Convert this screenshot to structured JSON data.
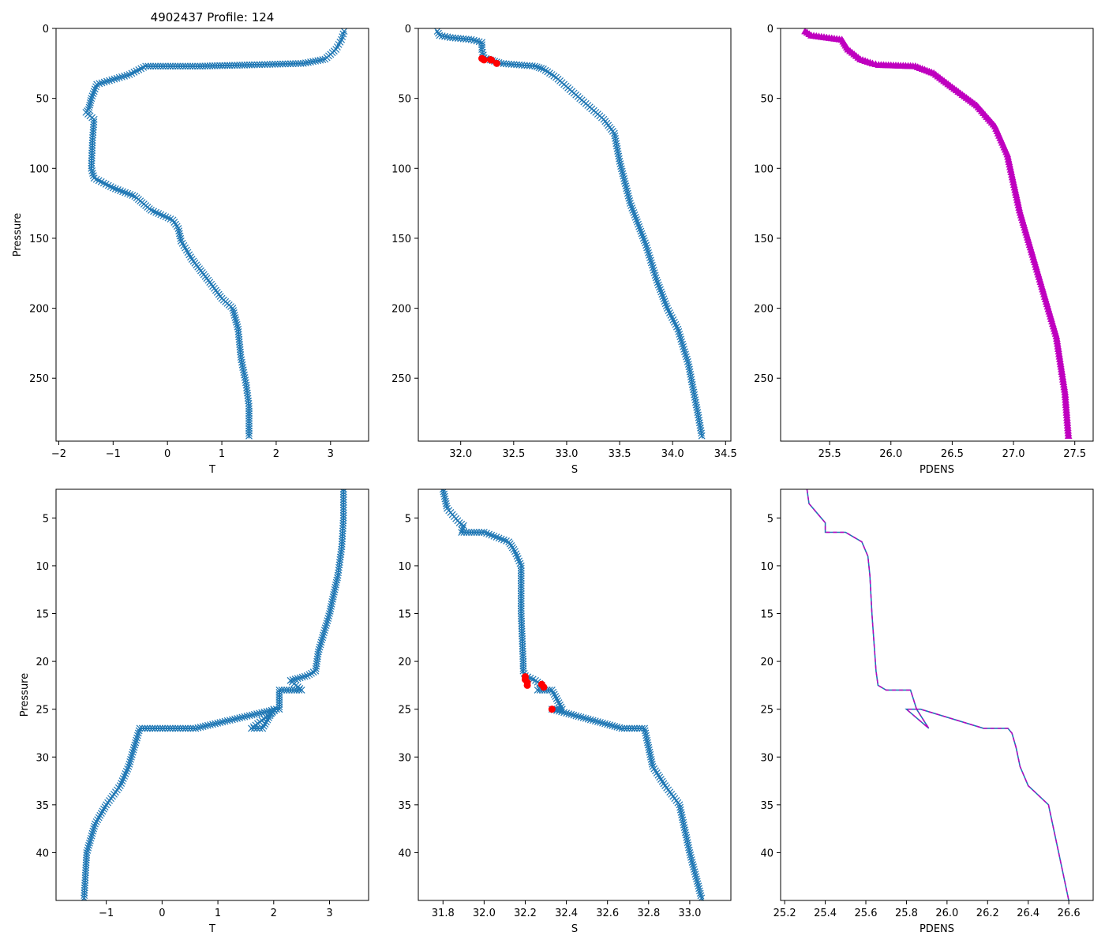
{
  "figure_title": "4902437 Profile: 124",
  "colors": {
    "series": "#1f77b4",
    "highlight": "#ff0000",
    "density": "#bf00bf",
    "axis": "#000000",
    "background": "#ffffff"
  },
  "chart_data": [
    {
      "type": "line",
      "panel": "top-left",
      "xlabel": "T",
      "ylabel": "Pressure",
      "xlim": [
        -2.05,
        3.7
      ],
      "ylim": [
        295,
        0
      ],
      "xticks": [
        -2,
        -1,
        0,
        1,
        2,
        3
      ],
      "xtick_labels": [
        "−2",
        "−1",
        "0",
        "1",
        "2",
        "3"
      ],
      "yticks": [
        0,
        50,
        100,
        150,
        200,
        250
      ],
      "ytick_labels": [
        "0",
        "50",
        "100",
        "150",
        "200",
        "250"
      ],
      "marker": "x",
      "series": [
        {
          "name": "T",
          "color": "#1f77b4",
          "x": [
            3.25,
            3.2,
            3.1,
            2.9,
            2.5,
            1.6,
            0.6,
            -0.4,
            -0.7,
            -1.3,
            -1.4,
            -1.45,
            -1.5,
            -1.35,
            -1.38,
            -1.4,
            -1.35,
            -1.0,
            -0.6,
            -0.3,
            0.1,
            0.2,
            0.25,
            0.45,
            0.75,
            1.0,
            1.2,
            1.3,
            1.35,
            1.45,
            1.5,
            1.5
          ],
          "y": [
            2,
            8,
            15,
            22,
            25,
            26,
            27,
            27,
            33,
            40,
            50,
            58,
            60,
            65,
            80,
            100,
            107,
            114,
            120,
            130,
            137,
            143,
            152,
            165,
            180,
            193,
            200,
            215,
            235,
            255,
            270,
            293
          ]
        }
      ]
    },
    {
      "type": "line",
      "panel": "top-middle",
      "xlabel": "S",
      "ylabel": "",
      "xlim": [
        31.6,
        34.55
      ],
      "ylim": [
        295,
        0
      ],
      "xticks": [
        32.0,
        32.5,
        33.0,
        33.5,
        34.0,
        34.5
      ],
      "xtick_labels": [
        "32.0",
        "32.5",
        "33.0",
        "33.5",
        "34.0",
        "34.5"
      ],
      "yticks": [
        0,
        50,
        100,
        150,
        200,
        250
      ],
      "ytick_labels": [
        "0",
        "50",
        "100",
        "150",
        "200",
        "250"
      ],
      "marker": "x",
      "series": [
        {
          "name": "S",
          "color": "#1f77b4",
          "x": [
            31.78,
            31.8,
            31.9,
            32.1,
            32.2,
            32.2,
            32.22,
            32.3,
            32.38,
            32.7,
            32.78,
            32.9,
            33.05,
            33.2,
            33.35,
            33.45,
            33.5,
            33.6,
            33.75,
            33.85,
            33.95,
            34.05,
            34.15,
            34.2,
            34.25,
            34.28
          ],
          "y": [
            2,
            5,
            6.5,
            8,
            10,
            15,
            21,
            23,
            25,
            27,
            29,
            35,
            45,
            55,
            65,
            75,
            95,
            125,
            155,
            180,
            200,
            215,
            240,
            260,
            280,
            293
          ]
        }
      ],
      "highlights": [
        {
          "name": "flagged S",
          "color": "#ff0000",
          "x": [
            32.2,
            32.21,
            32.22,
            32.28,
            32.29,
            32.34
          ],
          "y": [
            21.5,
            22,
            22.5,
            22.3,
            22.6,
            25
          ]
        }
      ]
    },
    {
      "type": "line",
      "panel": "top-right",
      "xlabel": "PDENS",
      "ylabel": "",
      "xlim": [
        25.1,
        27.65
      ],
      "ylim": [
        295,
        0
      ],
      "xticks": [
        25.5,
        26.0,
        26.5,
        27.0,
        27.5
      ],
      "xtick_labels": [
        "25.5",
        "26.0",
        "26.5",
        "27.0",
        "27.5"
      ],
      "yticks": [
        0,
        50,
        100,
        150,
        200,
        250
      ],
      "ytick_labels": [
        "0",
        "50",
        "100",
        "150",
        "200",
        "250"
      ],
      "marker": "^",
      "series": [
        {
          "name": "PDENS",
          "color": "#bf00bf",
          "x": [
            25.3,
            25.35,
            25.6,
            25.65,
            25.75,
            25.85,
            25.9,
            26.2,
            26.35,
            26.5,
            26.7,
            26.85,
            26.95,
            27.0,
            27.05,
            27.15,
            27.25,
            27.35,
            27.42,
            27.45
          ],
          "y": [
            2,
            5,
            8,
            15,
            22,
            25,
            26,
            27,
            32,
            42,
            55,
            70,
            90,
            110,
            130,
            160,
            190,
            220,
            260,
            293
          ]
        }
      ]
    },
    {
      "type": "line",
      "panel": "bottom-left",
      "xlabel": "T",
      "ylabel": "Pressure",
      "xlim": [
        -1.9,
        3.7
      ],
      "ylim": [
        45,
        2
      ],
      "xticks": [
        -1,
        0,
        1,
        2,
        3
      ],
      "xtick_labels": [
        "−1",
        "0",
        "1",
        "2",
        "3"
      ],
      "yticks": [
        5,
        10,
        15,
        20,
        25,
        30,
        35,
        40
      ],
      "ytick_labels": [
        "5",
        "10",
        "15",
        "20",
        "25",
        "30",
        "35",
        "40"
      ],
      "marker": "x",
      "series": [
        {
          "name": "T",
          "color": "#1f77b4",
          "x": [
            3.25,
            3.25,
            3.22,
            3.15,
            3.0,
            2.8,
            2.75,
            2.6,
            2.3,
            2.5,
            2.1,
            2.1,
            2.05,
            2.0,
            1.8,
            1.6,
            2.05,
            0.6,
            -0.4,
            -0.5,
            -0.6,
            -0.75,
            -1.0,
            -1.2,
            -1.35,
            -1.4
          ],
          "y": [
            2,
            5,
            8,
            11,
            15,
            19,
            21,
            21.5,
            22,
            23,
            23,
            25,
            25,
            25,
            27,
            27,
            25,
            27,
            27,
            29,
            31,
            33,
            35,
            37,
            40,
            45
          ]
        }
      ]
    },
    {
      "type": "line",
      "panel": "bottom-middle",
      "xlabel": "S",
      "ylabel": "",
      "xlim": [
        31.68,
        33.2
      ],
      "ylim": [
        45,
        2
      ],
      "xticks": [
        31.8,
        32.0,
        32.2,
        32.4,
        32.6,
        32.8,
        33.0
      ],
      "xtick_labels": [
        "31.8",
        "32.0",
        "32.2",
        "32.4",
        "32.6",
        "32.8",
        "33.0"
      ],
      "yticks": [
        5,
        10,
        15,
        20,
        25,
        30,
        35,
        40
      ],
      "ytick_labels": [
        "5",
        "10",
        "15",
        "20",
        "25",
        "30",
        "35",
        "40"
      ],
      "marker": "x",
      "series": [
        {
          "name": "S",
          "color": "#1f77b4",
          "x": [
            31.8,
            31.82,
            31.88,
            31.9,
            31.89,
            32.0,
            32.12,
            32.15,
            32.18,
            32.18,
            32.19,
            32.19,
            32.2,
            32.25,
            32.28,
            32.26,
            32.33,
            32.38,
            32.33,
            32.67,
            32.78,
            32.8,
            32.82,
            32.88,
            32.95,
            33.0,
            33.06
          ],
          "y": [
            2,
            4,
            5.5,
            5.8,
            6.5,
            6.5,
            7.5,
            8.5,
            10,
            15,
            20,
            21,
            21.5,
            22,
            22.5,
            23,
            23,
            25,
            25,
            27,
            27,
            29,
            31,
            33,
            35,
            40,
            45
          ]
        }
      ],
      "highlights": [
        {
          "name": "flagged S",
          "color": "#ff0000",
          "x": [
            32.2,
            32.2,
            32.21,
            32.21,
            32.28,
            32.29,
            32.33
          ],
          "y": [
            21.6,
            21.9,
            22.2,
            22.5,
            22.4,
            22.7,
            25
          ]
        }
      ]
    },
    {
      "type": "line",
      "panel": "bottom-right",
      "xlabel": "PDENS",
      "ylabel": "",
      "xlim": [
        25.18,
        26.72
      ],
      "ylim": [
        45,
        2
      ],
      "xticks": [
        25.2,
        25.4,
        25.6,
        25.8,
        26.0,
        26.2,
        26.4,
        26.6
      ],
      "xtick_labels": [
        "25.2",
        "25.4",
        "25.6",
        "25.8",
        "26.0",
        "26.2",
        "26.4",
        "26.6"
      ],
      "yticks": [
        5,
        10,
        15,
        20,
        25,
        30,
        35,
        40
      ],
      "ytick_labels": [
        "5",
        "10",
        "15",
        "20",
        "25",
        "30",
        "35",
        "40"
      ],
      "marker": "none",
      "series": [
        {
          "name": "PDENS",
          "color": "#1f77b4",
          "x": [
            25.31,
            25.32,
            25.38,
            25.4,
            25.4,
            25.5,
            25.58,
            25.61,
            25.62,
            25.63,
            25.64,
            25.65,
            25.66,
            25.7,
            25.76,
            25.82,
            25.85,
            25.91,
            25.8,
            25.87,
            26.18,
            26.3,
            26.32,
            26.34,
            26.36,
            26.4,
            26.45,
            26.5,
            26.55,
            26.6
          ],
          "y": [
            2,
            3.5,
            5,
            5.5,
            6.5,
            6.5,
            7.5,
            9,
            11,
            15,
            18,
            21,
            22.5,
            23,
            23,
            23,
            25,
            27,
            25,
            25,
            27,
            27,
            27.5,
            29,
            31,
            33,
            34,
            35,
            40,
            45
          ]
        }
      ]
    }
  ]
}
